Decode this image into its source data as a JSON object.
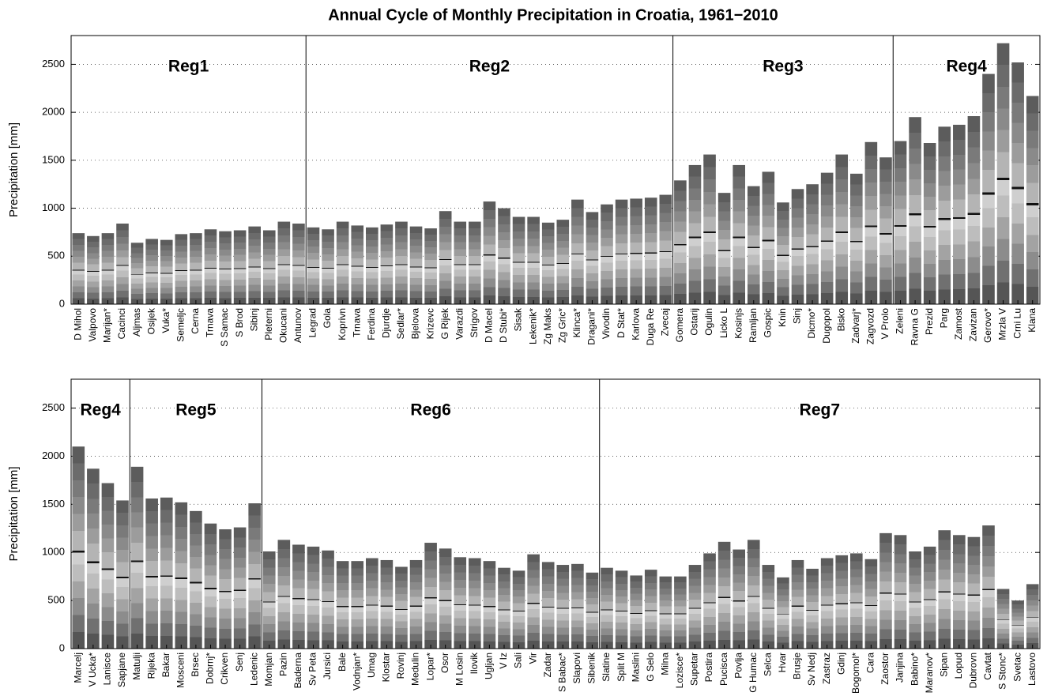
{
  "chart_data": [
    {
      "type": "stacked-bar",
      "title": "Annual Cycle of Monthly Precipitation in Croatia, 1961−2010",
      "ylabel": "Precipitation [mm]",
      "ylim": [
        0,
        2800
      ],
      "yticks": [
        0,
        500,
        1000,
        1500,
        2000,
        2500
      ],
      "grid": true,
      "regions": [
        {
          "name": "Reg1",
          "categories": [
            "D Mihol",
            "Valpovo",
            "Marijan*",
            "Cacinci",
            "Aljmas",
            "Osijek",
            "Vuka*",
            "Semeljc",
            "Cerna",
            "Trnava",
            "S Samac",
            "S Brod",
            "Sibinj",
            "Pleterni",
            "Okucani",
            "Antunov"
          ],
          "values": [
            740,
            710,
            740,
            840,
            640,
            680,
            670,
            730,
            740,
            780,
            760,
            770,
            810,
            770,
            860,
            840
          ]
        },
        {
          "name": "Reg2",
          "categories": [
            "Legrad",
            "Gola",
            "Koprivn",
            "Trnava",
            "Ferdina",
            "Djurdje",
            "Sedlar*",
            "Bjelova",
            "Krizevc",
            "G Rijek",
            "Varazdi",
            "Strigov",
            "D Macel",
            "D Stubi*",
            "Sisak",
            "Lekenik*",
            "Zg Maks",
            "Zg Gric*",
            "Klinca*",
            "Dragani*",
            "Vivodin",
            "D Stat*",
            "Karlova",
            "Duga Re",
            "Zvecaj"
          ],
          "values": [
            800,
            780,
            860,
            820,
            800,
            830,
            860,
            810,
            790,
            970,
            860,
            860,
            1070,
            1000,
            910,
            910,
            850,
            880,
            1090,
            960,
            1040,
            1090,
            1100,
            1110,
            1140
          ]
        },
        {
          "name": "Reg3",
          "categories": [
            "Gomera",
            "Ostarij",
            "Ogulin",
            "Licko L",
            "Kosinjs",
            "Ramljan",
            "Gospic",
            "Knin",
            "Sinj",
            "Dicmo*",
            "Dugopol",
            "Bisko",
            "Zadvarj*",
            "Zagvozd",
            "V Prolo"
          ],
          "values": [
            1290,
            1450,
            1560,
            1160,
            1450,
            1230,
            1380,
            1060,
            1200,
            1250,
            1370,
            1560,
            1360,
            1690,
            1530
          ]
        },
        {
          "name": "Reg4",
          "categories": [
            "Zeleni",
            "Ravna G",
            "Prezid",
            "Parg",
            "Zamost",
            "Zavizan",
            "Gerovo*",
            "Mrzla V",
            "Crni Lu",
            "Klana"
          ],
          "values": [
            1700,
            1950,
            1680,
            1850,
            1870,
            1960,
            2400,
            2720,
            2520,
            2170
          ]
        }
      ]
    },
    {
      "type": "stacked-bar",
      "ylabel": "Precipitation [mm]",
      "ylim": [
        0,
        2800
      ],
      "yticks": [
        0,
        500,
        1000,
        1500,
        2000,
        2500
      ],
      "grid": true,
      "regions": [
        {
          "name": "Reg4",
          "categories": [
            "Marcelj",
            "V Ucka*",
            "Lanisce",
            "Sapjane"
          ],
          "values": [
            2100,
            1870,
            1720,
            1540
          ]
        },
        {
          "name": "Reg5",
          "categories": [
            "Matulji",
            "Rijeka",
            "Bakar",
            "Mosceni",
            "Brsec",
            "Dobrnj*",
            "Crikven",
            "Senj",
            "Ledenic"
          ],
          "values": [
            1890,
            1560,
            1570,
            1520,
            1430,
            1300,
            1240,
            1260,
            1510
          ]
        },
        {
          "name": "Reg6",
          "categories": [
            "Momjan",
            "Pazin",
            "Baderna",
            "Sv Peta",
            "Jursici",
            "Bale",
            "Vodnjan*",
            "Umag",
            "Klostar",
            "Rovinj",
            "Medulin",
            "Lopar*",
            "Osor",
            "M Losin",
            "Ilovik",
            "Ugljan",
            "V Iz",
            "Sali",
            "Vir",
            "Zadar",
            "S Babac*",
            "Slapovi",
            "Sibenik"
          ],
          "values": [
            1010,
            1130,
            1080,
            1060,
            1020,
            910,
            910,
            940,
            920,
            850,
            920,
            1100,
            1040,
            950,
            940,
            910,
            840,
            810,
            980,
            900,
            870,
            880,
            790
          ]
        },
        {
          "name": "Reg7",
          "categories": [
            "Slatine",
            "Split M",
            "Maslini",
            "G Selo",
            "Milna",
            "Lozisce*",
            "Supetar",
            "Postira",
            "Pucisca",
            "Povlja",
            "G Humac",
            "Selca",
            "Hvar",
            "Brusje",
            "Sv Nedj",
            "Zastraz",
            "Gdinj",
            "Bogomol*",
            "Cara",
            "Zaostor",
            "Janjina",
            "Babino*",
            "Maranov*",
            "Sipan",
            "Lopud",
            "Dubrovn",
            "Cavtat",
            "S Stonc*",
            "Svetac",
            "Lastovo"
          ],
          "values": [
            840,
            810,
            760,
            820,
            750,
            750,
            870,
            990,
            1110,
            1030,
            1130,
            870,
            740,
            920,
            830,
            940,
            970,
            990,
            930,
            1200,
            1180,
            1010,
            1060,
            1230,
            1180,
            1160,
            1280,
            620,
            500,
            670
          ]
        }
      ]
    }
  ]
}
